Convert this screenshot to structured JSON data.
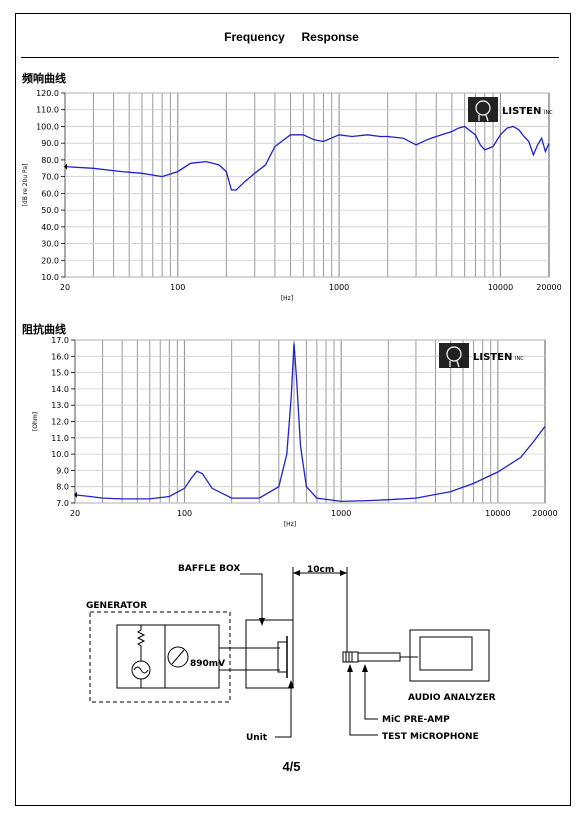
{
  "page_title": "Frequency     Response",
  "freq_section_title": "频响曲线",
  "imp_section_title": "阻抗曲线",
  "page_number": "4/5",
  "logo_text": "LISTEN",
  "logo_suffix": "INC",
  "chart_data": [
    {
      "type": "line",
      "title": "频响曲线",
      "xlabel": "[Hz]",
      "ylabel": "[dB re 20u Pa]",
      "x_scale": "log",
      "xlim": [
        20,
        20000
      ],
      "ylim": [
        10,
        120
      ],
      "x_ticks": [
        "20",
        "100",
        "1000",
        "10000",
        "20000"
      ],
      "y_ticks": [
        "120.0",
        "110.0",
        "100.0",
        "90.0",
        "80.0",
        "70.0",
        "60.0",
        "50.0",
        "40.0",
        "30.0",
        "20.0",
        "10.0"
      ],
      "grid": true,
      "color": "#2222cc",
      "x": [
        20,
        30,
        45,
        60,
        80,
        100,
        120,
        150,
        180,
        200,
        215,
        230,
        260,
        300,
        350,
        400,
        500,
        600,
        700,
        800,
        1000,
        1200,
        1500,
        1800,
        2000,
        2500,
        3000,
        3500,
        4000,
        5000,
        5500,
        6000,
        7000,
        7500,
        8000,
        9000,
        10000,
        11000,
        12000,
        13000,
        14000,
        15000,
        16000,
        17000,
        18000,
        19000,
        20000
      ],
      "y": [
        76,
        75,
        73,
        72,
        70,
        73,
        78,
        79,
        77,
        73,
        62,
        62,
        67,
        72,
        77,
        88,
        95,
        95,
        92,
        91,
        95,
        94,
        95,
        94,
        94,
        93,
        89,
        92,
        94,
        97,
        99,
        100,
        95,
        89,
        86,
        88,
        95,
        99,
        100,
        98,
        94,
        91,
        83,
        89,
        93,
        85,
        90
      ]
    },
    {
      "type": "line",
      "title": "阻抗曲线",
      "xlabel": "[Hz]",
      "ylabel": "[Ohm]",
      "x_scale": "log",
      "xlim": [
        20,
        20000
      ],
      "ylim": [
        7,
        17
      ],
      "x_ticks": [
        "20",
        "100",
        "1000",
        "10000",
        "20000"
      ],
      "y_ticks": [
        "17.0",
        "16.0",
        "15.0",
        "14.0",
        "13.0",
        "12.0",
        "11.0",
        "10.0",
        "9.0",
        "8.0",
        "7.0"
      ],
      "grid": true,
      "color": "#2222cc",
      "x": [
        20,
        25,
        30,
        40,
        60,
        80,
        100,
        110,
        120,
        130,
        150,
        200,
        300,
        400,
        450,
        480,
        500,
        520,
        550,
        600,
        700,
        1000,
        1500,
        2000,
        3000,
        5000,
        7000,
        10000,
        14000,
        17000,
        20000
      ],
      "y": [
        7.5,
        7.4,
        7.3,
        7.25,
        7.25,
        7.4,
        7.9,
        8.5,
        8.95,
        8.8,
        7.9,
        7.3,
        7.3,
        8.0,
        10.0,
        13.5,
        16.8,
        14.5,
        10.5,
        8.0,
        7.3,
        7.1,
        7.15,
        7.2,
        7.3,
        7.7,
        8.2,
        8.9,
        9.8,
        10.8,
        11.7
      ]
    }
  ],
  "diagram": {
    "baffle_box": "BAFFLE BOX",
    "distance": "10cm",
    "generator": "GENERATOR",
    "voltage": "890mV",
    "unit": "Unit",
    "audio_analyzer": "AUDIO ANALYZER",
    "mic_preamp": "MiC PRE-AMP",
    "test_mic": "TEST MiCROPHONE"
  }
}
